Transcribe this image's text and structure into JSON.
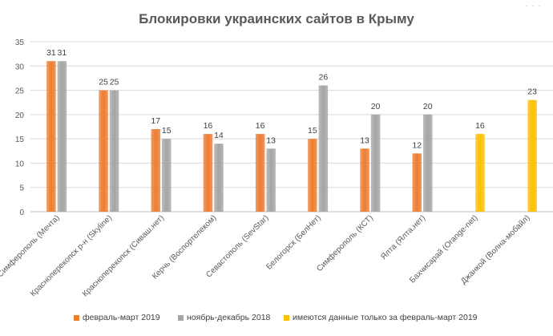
{
  "chart_data": {
    "type": "bar",
    "title": "Блокировки украинских сайтов в Крыму",
    "xlabel": "",
    "ylabel": "",
    "ylim": [
      0,
      35
    ],
    "yticks": [
      0,
      5,
      10,
      15,
      20,
      25,
      30,
      35
    ],
    "grid": true,
    "legend_position": "bottom",
    "categories": [
      "Симферополь (Мечта)",
      "Красноперекопск р-н (Skyline)",
      "Красноперекопск (Сиваш.нет)",
      "Керчь (Воспортелеком)",
      "Севастополь (SevStar)",
      "Белогорск (БелНет)",
      "Симферополь (КСТ)",
      "Ялта (Ялта.нет)",
      "Бахчисарай (Orange-net)",
      "Джанкой (Волна-мобайл)"
    ],
    "series": [
      {
        "name": "февраль-март 2019",
        "color": "#ED7D31",
        "values": [
          31,
          25,
          17,
          16,
          16,
          15,
          13,
          12,
          null,
          null
        ]
      },
      {
        "name": "ноябрь-декабрь 2018",
        "color": "#A5A5A5",
        "values": [
          31,
          25,
          15,
          14,
          13,
          26,
          20,
          20,
          null,
          null
        ]
      },
      {
        "name": "имеются данные только за февраль-март 2019",
        "color": "#FFC000",
        "values": [
          null,
          null,
          null,
          null,
          null,
          null,
          null,
          null,
          16,
          23
        ]
      }
    ]
  }
}
